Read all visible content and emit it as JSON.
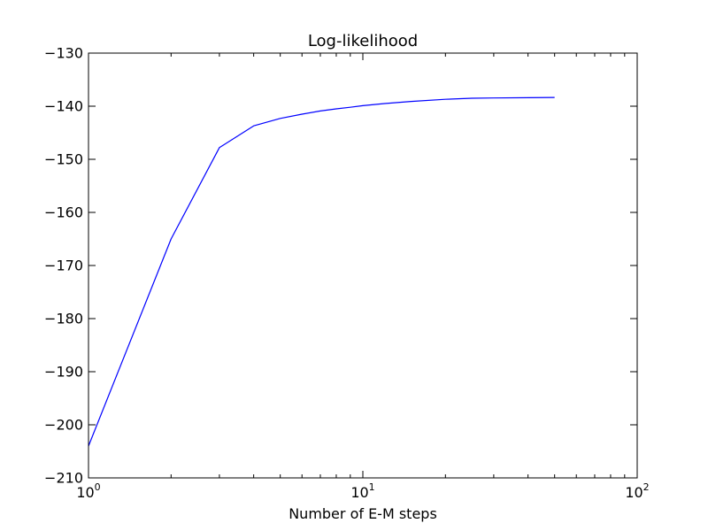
{
  "chart_data": {
    "type": "line",
    "title": "Log-likelihood",
    "xlabel": "Number of E-M steps",
    "ylabel": "",
    "xscale": "log",
    "xlim": [
      1,
      100
    ],
    "ylim": [
      -210,
      -130
    ],
    "grid": false,
    "line_color": "#0000ff",
    "x_ticks": [
      {
        "value": 1,
        "base": "10",
        "exp": "0"
      },
      {
        "value": 10,
        "base": "10",
        "exp": "1"
      },
      {
        "value": 100,
        "base": "10",
        "exp": "2"
      }
    ],
    "y_ticks": [
      {
        "value": -210,
        "label": "−210"
      },
      {
        "value": -200,
        "label": "−200"
      },
      {
        "value": -190,
        "label": "−190"
      },
      {
        "value": -180,
        "label": "−180"
      },
      {
        "value": -170,
        "label": "−170"
      },
      {
        "value": -160,
        "label": "−160"
      },
      {
        "value": -150,
        "label": "−150"
      },
      {
        "value": -140,
        "label": "−140"
      },
      {
        "value": -130,
        "label": "−130"
      }
    ],
    "series": [
      {
        "x": [
          1,
          2,
          3,
          4,
          5,
          6,
          7,
          8,
          9,
          10,
          12,
          15,
          20,
          25,
          30,
          40,
          50
        ],
        "y": [
          -204,
          -165,
          -147.8,
          -143.7,
          -142.3,
          -141.5,
          -140.9,
          -140.5,
          -140.2,
          -139.9,
          -139.5,
          -139.1,
          -138.7,
          -138.5,
          -138.45,
          -138.4,
          -138.35
        ]
      }
    ]
  }
}
